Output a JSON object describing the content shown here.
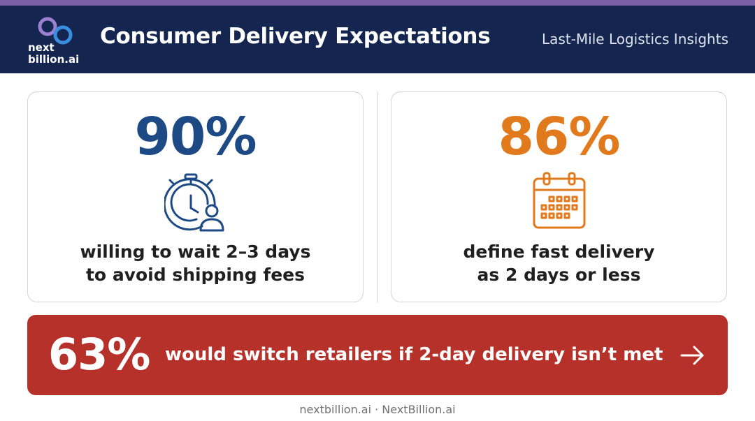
{
  "header": {
    "logo_line1": "next",
    "logo_line2": "billion.ai",
    "title": "Consumer Delivery Expectations",
    "subtitle": "Last-Mile Logistics Insights"
  },
  "stats": {
    "left": {
      "value": "90%",
      "line1": "willing to wait 2–3 days",
      "line2": "to avoid shipping fees",
      "icon": "stopwatch-person-icon",
      "color": "#1d4a85"
    },
    "right": {
      "value": "86%",
      "line1": "define fast delivery",
      "line2": "as 2 days or less",
      "icon": "calendar-icon",
      "color": "#e07a1c"
    }
  },
  "banner": {
    "value": "63%",
    "text": "would switch retailers if 2-day delivery isn’t met",
    "icon": "arrow-right-icon",
    "color": "#b5312a"
  },
  "footer": {
    "text": "nextbillion.ai · NextBillion.ai"
  },
  "colors": {
    "header_bg": "#14264f",
    "accent_bar": "#7b5fa6"
  }
}
